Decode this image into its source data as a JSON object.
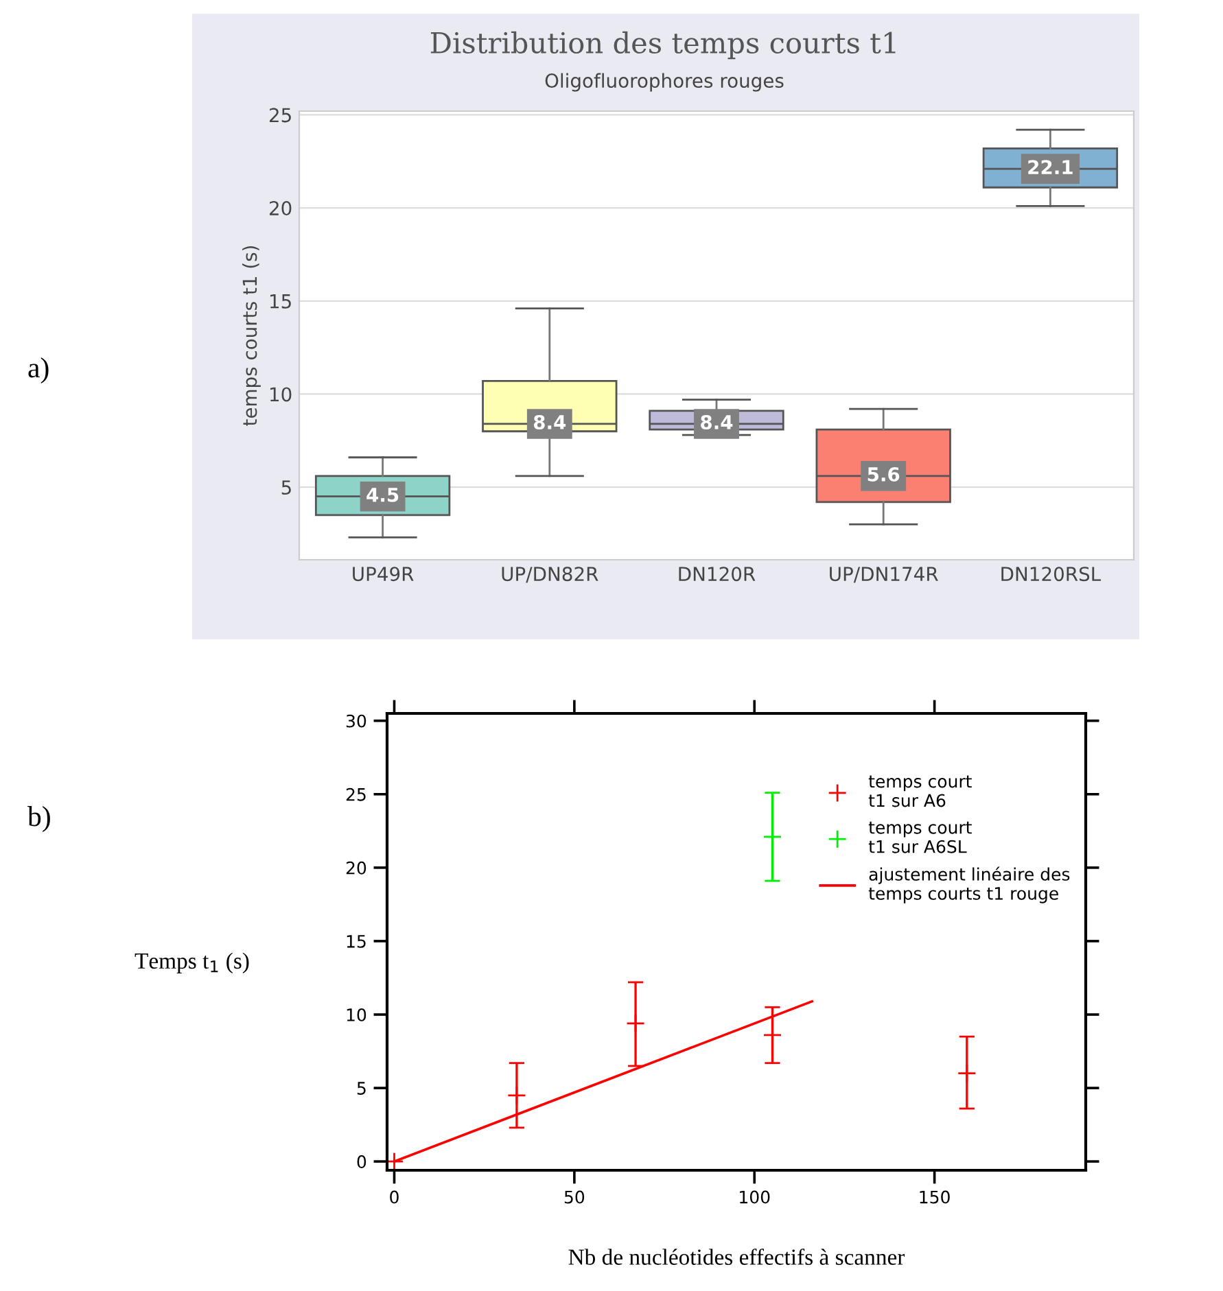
{
  "chart_data": [
    {
      "type": "box",
      "title": "Distribution des temps courts t1",
      "subtitle": "Oligofluorophores rouges",
      "ylabel": "temps courts t1 (s)",
      "categories": [
        "UP49R",
        "UP/DN82R",
        "DN120R",
        "UP/DN174R",
        "DN120RSL"
      ],
      "colors": [
        "#8dd3c7",
        "#ffffb3",
        "#bebada",
        "#fb8072",
        "#80b1d3"
      ],
      "boxes": [
        {
          "low": 2.3,
          "q1": 3.5,
          "median": 4.5,
          "q3": 5.6,
          "high": 6.6
        },
        {
          "low": 5.6,
          "q1": 8.0,
          "median": 8.4,
          "q3": 10.7,
          "high": 14.6
        },
        {
          "low": 7.8,
          "q1": 8.1,
          "median": 8.4,
          "q3": 9.1,
          "high": 9.7
        },
        {
          "low": 3.0,
          "q1": 4.2,
          "median": 5.6,
          "q3": 8.1,
          "high": 9.2
        },
        {
          "low": 20.1,
          "q1": 21.1,
          "median": 22.1,
          "q3": 23.2,
          "high": 24.2
        }
      ],
      "ylim": [
        1.1,
        25.2
      ],
      "yticks": [
        5,
        10,
        15,
        20,
        25
      ],
      "grid": "y",
      "annotations": [
        "a)",
        {
          "text": "4.5",
          "x": "UP49R",
          "y": 4.5
        },
        {
          "text": "8.4",
          "x": "UP/DN82R",
          "y": 8.4
        },
        {
          "text": "8.4",
          "x": "DN120R",
          "y": 8.4
        },
        {
          "text": "5.6",
          "x": "UP/DN174R",
          "y": 5.6
        },
        {
          "text": "22.1",
          "x": "DN120RSL",
          "y": 22.1
        }
      ]
    },
    {
      "type": "scatter",
      "xlabel": "Nb de nucléotides effectifs à scanner",
      "ylabel": "Temps t$_{1}$ (s)",
      "xlim": [
        -2,
        192
      ],
      "ylim": [
        -0.6,
        30.5
      ],
      "xticks": [
        0,
        50,
        100,
        150
      ],
      "yticks": [
        0,
        5,
        10,
        15,
        20,
        25,
        30
      ],
      "marker": "cross",
      "legend": "top right",
      "annotations": [
        "b)"
      ],
      "series": [
        {
          "name": "temps court\nt1 sur A6",
          "color": "#ff0000",
          "x": [
            0,
            34,
            67,
            105,
            159
          ],
          "values": [
            0,
            4.5,
            9.4,
            8.6,
            6.0
          ],
          "errors": [
            null,
            [
              2.3,
              6.7
            ],
            [
              6.5,
              12.2
            ],
            [
              6.7,
              10.5
            ],
            [
              3.6,
              8.5
            ]
          ]
        },
        {
          "name": "temps court\nt1 sur A6SL",
          "color": "#00ee00",
          "x": [
            105
          ],
          "values": [
            22.1
          ],
          "errors": [
            [
              19.1,
              25.1
            ]
          ]
        },
        {
          "name": "ajustement linéaire des\ntemps courts t1 rouge",
          "type": "line",
          "marker": "none",
          "color": "#ff0000",
          "x": [
            0,
            116
          ],
          "values": [
            0,
            10.9
          ]
        }
      ]
    }
  ]
}
